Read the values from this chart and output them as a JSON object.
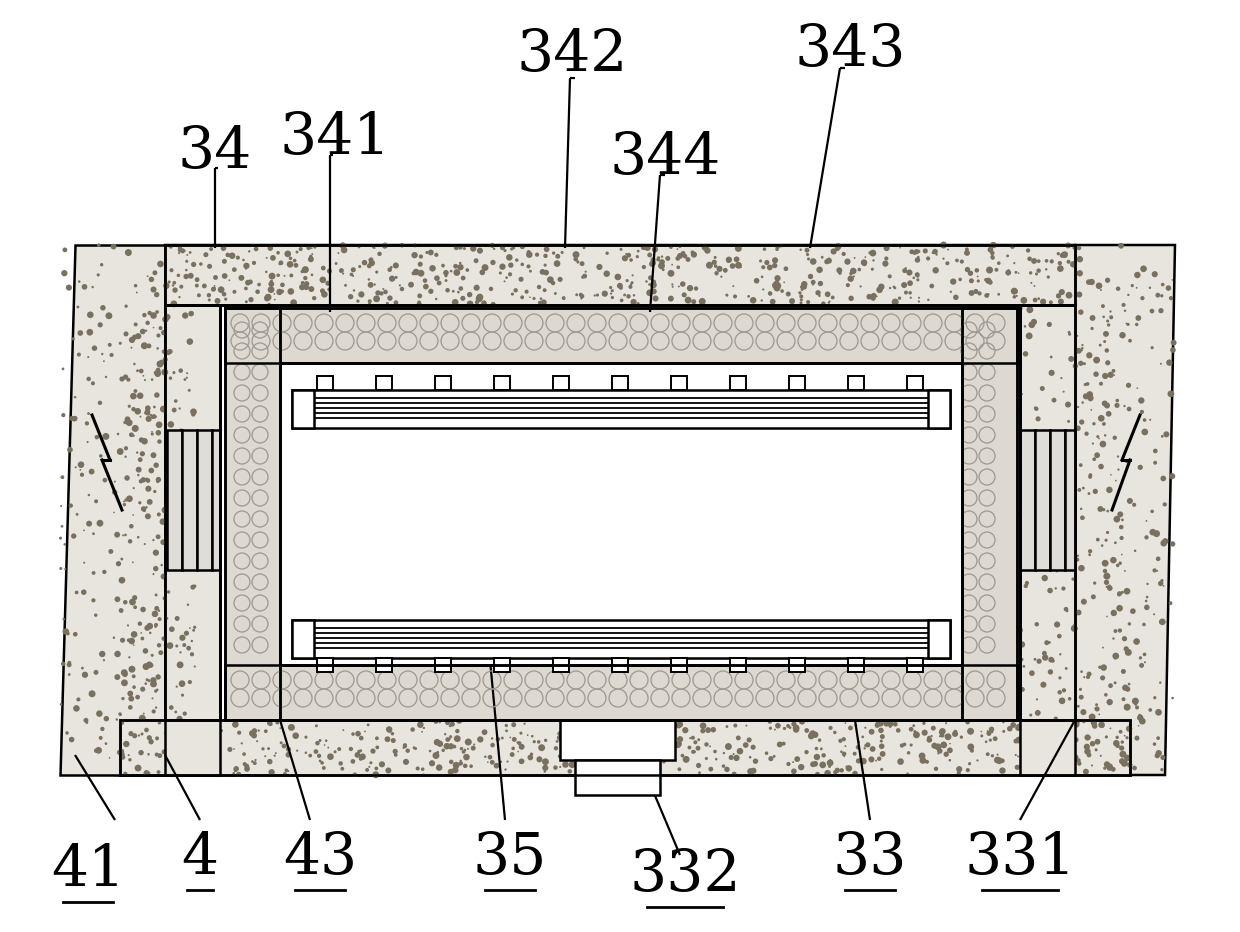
{
  "bg_color": "#ffffff",
  "lc": "#000000",
  "figsize": [
    12.4,
    9.32
  ],
  "dpi": 100,
  "label_fontsize": 42,
  "label_fontsize_sm": 38
}
